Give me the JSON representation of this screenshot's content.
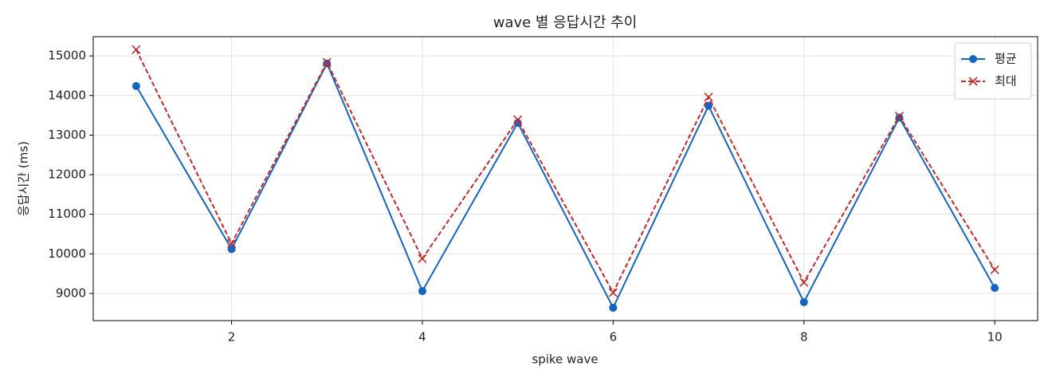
{
  "chart_data": {
    "type": "line",
    "title": "wave 별 응답시간 추이",
    "xlabel": "spike wave",
    "ylabel": "응답시간 (ms)",
    "x": [
      1,
      2,
      3,
      4,
      5,
      6,
      7,
      8,
      9,
      10
    ],
    "series": [
      {
        "name": "평균",
        "color": "#1565c0",
        "marker": "o",
        "linestyle": "solid",
        "values": [
          14240,
          10120,
          14810,
          9060,
          13310,
          8640,
          13740,
          8780,
          13440,
          9140
        ]
      },
      {
        "name": "최대",
        "color": "#c62828",
        "marker": "x",
        "linestyle": "dashed",
        "values": [
          15160,
          10260,
          14840,
          9880,
          13390,
          9020,
          13960,
          9280,
          13480,
          9600
        ]
      }
    ],
    "xlim": [
      0.55,
      10.45
    ],
    "xticks": [
      2,
      4,
      6,
      8,
      10
    ],
    "ylim": [
      8314,
      15486
    ],
    "yticks": [
      9000,
      10000,
      11000,
      12000,
      13000,
      14000,
      15000
    ],
    "grid": true,
    "legend": "upper right"
  }
}
